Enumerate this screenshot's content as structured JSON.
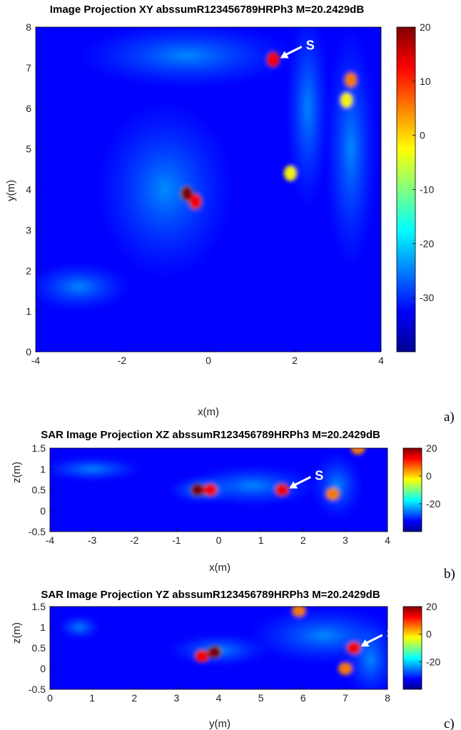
{
  "colorscale": [
    "#00008f",
    "#0000ff",
    "#0080ff",
    "#00ffff",
    "#80ff80",
    "#ffff00",
    "#ff8000",
    "#ff0000",
    "#800000"
  ],
  "chart_data": [
    {
      "type": "heatmap",
      "panel_label": "a)",
      "title": "Image Projection XY abssumR123456789HRPh3 M=20.2429dB",
      "xlabel": "x(m)",
      "ylabel": "y(m)",
      "xlim": [
        -4,
        4
      ],
      "ylim": [
        0,
        8
      ],
      "xticks": [
        "-4",
        "-2",
        "0",
        "2",
        "4"
      ],
      "yticks": [
        "0",
        "1",
        "2",
        "3",
        "4",
        "5",
        "6",
        "7",
        "8"
      ],
      "colorbar": {
        "range": [
          -40,
          20
        ],
        "ticks": [
          "20",
          "10",
          "0",
          "-10",
          "-20",
          "-30"
        ]
      },
      "marker_label": "S",
      "marker_at": [
        1.5,
        7.2
      ],
      "hotspots": [
        {
          "x": -0.5,
          "y": 3.9,
          "db": 20
        },
        {
          "x": -0.3,
          "y": 3.7,
          "db": 12
        },
        {
          "x": 1.5,
          "y": 7.2,
          "db": 14
        },
        {
          "x": 3.3,
          "y": 6.7,
          "db": 6
        },
        {
          "x": 1.9,
          "y": 4.4,
          "db": 0
        },
        {
          "x": 3.2,
          "y": 6.2,
          "db": 0
        }
      ]
    },
    {
      "type": "heatmap",
      "panel_label": "b)",
      "title": "SAR Image Projection XZ abssumR123456789HRPh3 M=20.2429dB",
      "xlabel": "x(m)",
      "ylabel": "z(m)",
      "xlim": [
        -4,
        4
      ],
      "ylim": [
        -0.5,
        1.5
      ],
      "xticks": [
        "-4",
        "-3",
        "-2",
        "-1",
        "0",
        "1",
        "2",
        "3",
        "4"
      ],
      "yticks": [
        "-0.5",
        "0",
        "0.5",
        "1",
        "1.5"
      ],
      "colorbar": {
        "range": [
          -40,
          20
        ],
        "ticks": [
          "20",
          "0",
          "-20"
        ]
      },
      "marker_label": "S",
      "marker_at": [
        1.5,
        0.5
      ],
      "hotspots": [
        {
          "x": -0.5,
          "y": 0.5,
          "db": 18
        },
        {
          "x": -0.2,
          "y": 0.5,
          "db": 12
        },
        {
          "x": 1.5,
          "y": 0.5,
          "db": 16
        },
        {
          "x": 2.7,
          "y": 0.4,
          "db": 6
        },
        {
          "x": 3.3,
          "y": 1.5,
          "db": 6
        }
      ]
    },
    {
      "type": "heatmap",
      "panel_label": "c)",
      "title": "SAR Image Projection YZ abssumR123456789HRPh3 M=20.2429dB",
      "xlabel": "y(m)",
      "ylabel": "z(m)",
      "xlim": [
        0,
        8
      ],
      "ylim": [
        -0.5,
        1.5
      ],
      "xticks": [
        "0",
        "1",
        "2",
        "3",
        "4",
        "5",
        "6",
        "7",
        "8"
      ],
      "yticks": [
        "-0.5",
        "0",
        "0.5",
        "1",
        "1.5"
      ],
      "colorbar": {
        "range": [
          -40,
          20
        ],
        "ticks": [
          "20",
          "0",
          "-20"
        ]
      },
      "marker_label": "S",
      "marker_at": [
        7.2,
        0.5
      ],
      "hotspots": [
        {
          "x": 3.9,
          "y": 0.4,
          "db": 20
        },
        {
          "x": 3.6,
          "y": 0.3,
          "db": 12
        },
        {
          "x": 7.2,
          "y": 0.5,
          "db": 14
        },
        {
          "x": 7.0,
          "y": 0.0,
          "db": 4
        },
        {
          "x": 5.9,
          "y": 1.4,
          "db": 4
        }
      ]
    }
  ]
}
